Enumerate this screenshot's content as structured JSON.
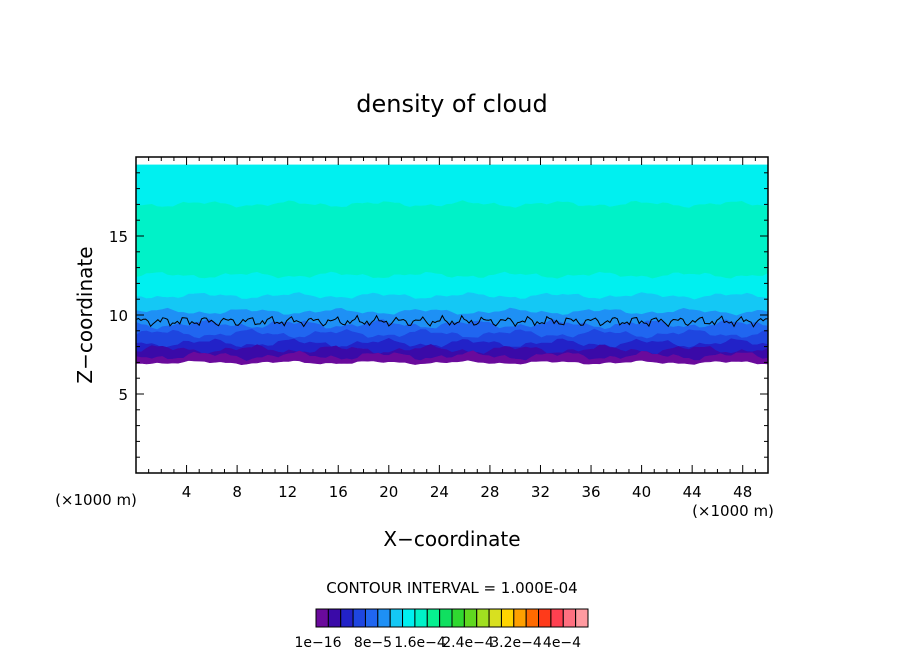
{
  "chart_data": {
    "type": "heatmap",
    "title": "density of cloud",
    "xlabel": "X−coordinate",
    "ylabel": "Z−coordinate",
    "x_unit_left": "(×1000 m)",
    "x_unit_right": "(×1000 m)",
    "xlim": [
      0,
      50
    ],
    "ylim": [
      0,
      20
    ],
    "x_ticks": [
      4,
      8,
      12,
      16,
      20,
      24,
      28,
      32,
      36,
      40,
      44,
      48
    ],
    "y_ticks": [
      5,
      10,
      15
    ],
    "contour_interval": "CONTOUR INTERVAL = 1.000E-04",
    "colorbar_labels": [
      "1e−16",
      "8e−5",
      "1.6e−4",
      "2.4e−4",
      "3.2e−4",
      "4e−4"
    ],
    "colorbar_colors": [
      "#6a0a9c",
      "#3a0aa8",
      "#2222c8",
      "#1e46e0",
      "#2066f0",
      "#1e90f5",
      "#14c8f5",
      "#00f0f0",
      "#00f2c8",
      "#06f090",
      "#10e060",
      "#30d830",
      "#60d820",
      "#a0e020",
      "#d8e020",
      "#ffd400",
      "#ffa000",
      "#ff6a00",
      "#ff3a1a",
      "#ff4050",
      "#ff7080",
      "#ff9aa0"
    ],
    "bands": [
      {
        "z_from": 19.5,
        "z_to": 17.0,
        "color": "#00f0f0"
      },
      {
        "z_from": 17.0,
        "z_to": 12.5,
        "color": "#00f2c8"
      },
      {
        "z_from": 12.5,
        "z_to": 11.2,
        "color": "#00f0f0"
      },
      {
        "z_from": 11.2,
        "z_to": 10.2,
        "color": "#14c8f5"
      },
      {
        "z_from": 10.2,
        "z_to": 9.4,
        "color": "#1e90f5"
      },
      {
        "z_from": 9.4,
        "z_to": 8.8,
        "color": "#2066f0"
      },
      {
        "z_from": 8.8,
        "z_to": 8.2,
        "color": "#1e46e0"
      },
      {
        "z_from": 8.2,
        "z_to": 7.8,
        "color": "#2222c8"
      },
      {
        "z_from": 7.8,
        "z_to": 7.4,
        "color": "#3a0aa8"
      },
      {
        "z_from": 7.4,
        "z_to": 7.0,
        "color": "#6a0a9c"
      }
    ],
    "cloud_top_z": 19.5,
    "cloud_base_z": 7.0,
    "contour_level_z": 9.6
  }
}
